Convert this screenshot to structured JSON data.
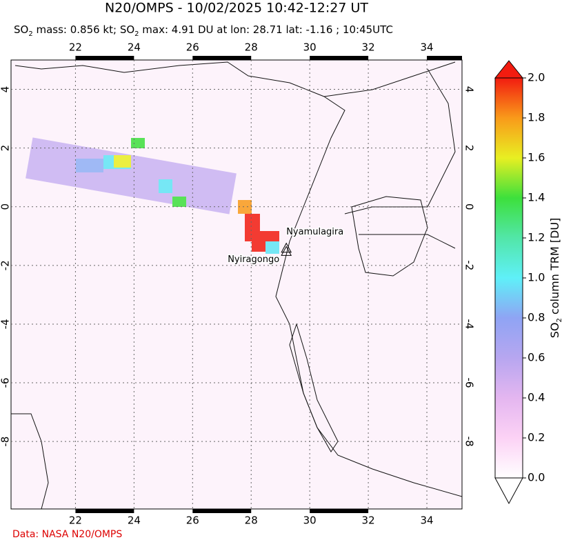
{
  "header": {
    "title": "N20/OMPS - 10/02/2025 10:42-12:27 UT",
    "subtitle": [
      "SO",
      "2",
      " mass: 0.856 kt; SO",
      "2",
      " max: 4.91 DU at lon: 28.71 lat: -1.16 ; 10:45UTC"
    ]
  },
  "map": {
    "lonlim": [
      19.8,
      35.2
    ],
    "latlim": [
      5,
      -10.3
    ],
    "xticks": [
      22,
      24,
      26,
      28,
      30,
      32,
      34
    ],
    "yticks": [
      4,
      2,
      0,
      -2,
      -4,
      -6,
      -8
    ],
    "volcanoes": [
      {
        "name": "Nyiragongo",
        "lon": 29.2,
        "lat": -1.52
      },
      {
        "name": "Nyamulagira",
        "lon": 29.2,
        "lat": -1.41
      }
    ]
  },
  "colorbar": {
    "lim": [
      0,
      2
    ],
    "ticks": [
      {
        "value": 0,
        "label": "0.0"
      },
      {
        "value": 0.2,
        "label": "0.2"
      },
      {
        "value": 0.4,
        "label": "0.4"
      },
      {
        "value": 0.6,
        "label": "0.6"
      },
      {
        "value": 0.8,
        "label": "0.8"
      },
      {
        "value": 1,
        "label": "1.0"
      },
      {
        "value": 1.2,
        "label": "1.2"
      },
      {
        "value": 1.4,
        "label": "1.4"
      },
      {
        "value": 1.6,
        "label": "1.6"
      },
      {
        "value": 1.8,
        "label": "1.8"
      },
      {
        "value": 2,
        "label": "2.0"
      }
    ],
    "label": [
      "SO",
      "2",
      " column TRM [DU]"
    ]
  },
  "credit": "Data: NASA N20/OMPS"
}
